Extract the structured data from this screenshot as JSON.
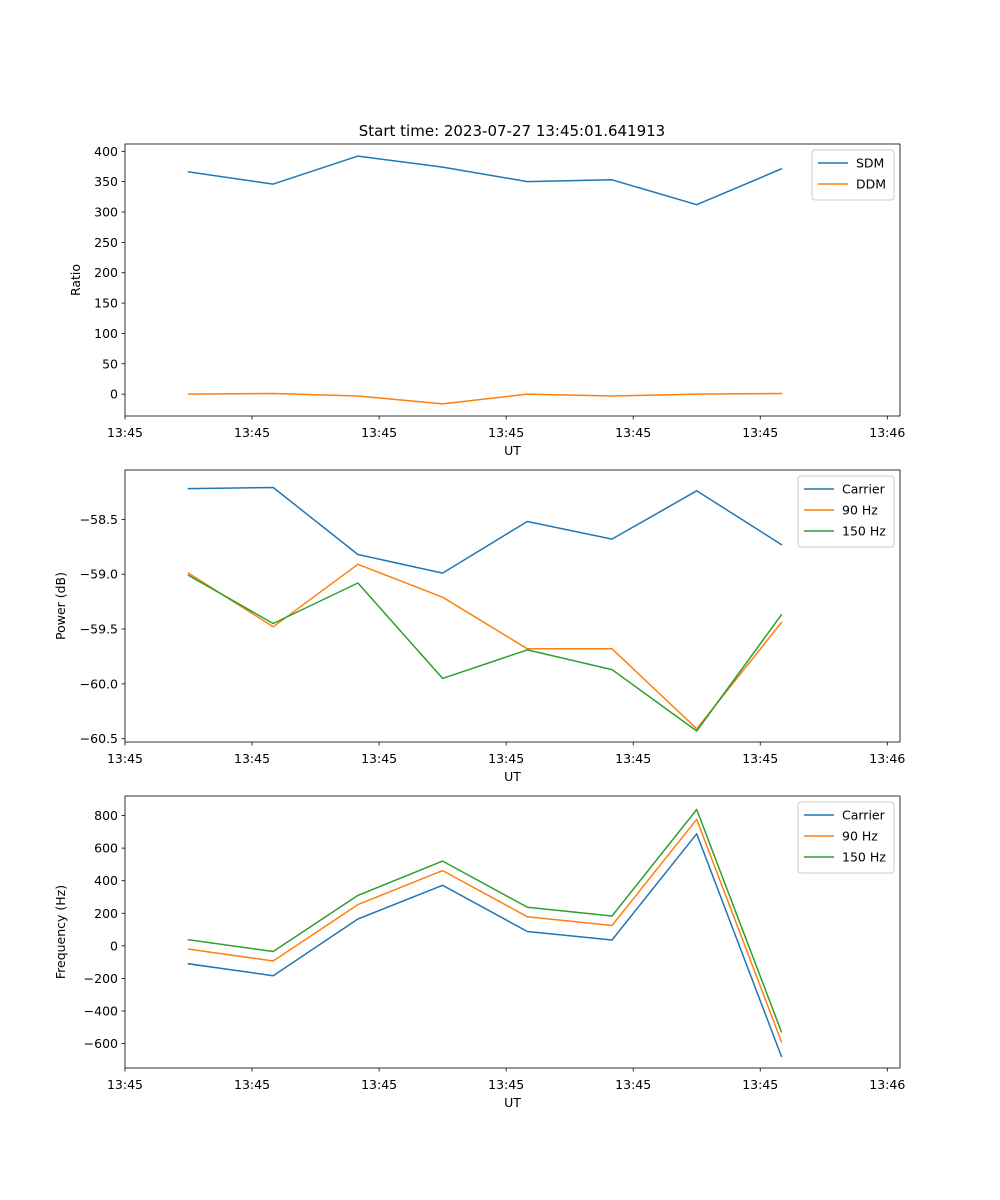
{
  "figure_title": "Start time: 2023-07-27 13:45:01.641913",
  "colors": {
    "blue": "#1f77b4",
    "orange": "#ff7f0e",
    "green": "#2ca02c"
  },
  "chart_data": [
    {
      "type": "line",
      "title": "Start time: 2023-07-27 13:45:01.641913",
      "xlabel": "UT",
      "ylabel": "Ratio",
      "x_tick_labels": [
        "13:45",
        "13:45",
        "13:45",
        "13:45",
        "13:45",
        "13:45",
        "13:46"
      ],
      "y_ticks": [
        0,
        50,
        100,
        150,
        200,
        250,
        300,
        350,
        400
      ],
      "ylim": [
        -36,
        412
      ],
      "x": [
        0,
        1,
        2,
        3,
        4,
        5,
        6,
        7
      ],
      "xlim": [
        -0.75,
        8.4
      ],
      "x_tick_positions": [
        -0.75,
        0.75,
        2.25,
        3.75,
        5.25,
        6.75,
        8.25
      ],
      "legend_position": "top-right",
      "series": [
        {
          "name": "SDM",
          "color": "#1f77b4",
          "values": [
            366,
            346,
            392,
            374,
            350,
            353,
            312,
            371
          ]
        },
        {
          "name": "DDM",
          "color": "#ff7f0e",
          "values": [
            0,
            1,
            -3,
            -16,
            0,
            -3,
            0,
            1
          ]
        }
      ]
    },
    {
      "type": "line",
      "xlabel": "UT",
      "ylabel": "Power (dB)",
      "x_tick_labels": [
        "13:45",
        "13:45",
        "13:45",
        "13:45",
        "13:45",
        "13:45",
        "13:46"
      ],
      "y_ticks": [
        -60.5,
        -60.0,
        -59.5,
        -59.0,
        -58.5
      ],
      "y_tick_labels": [
        "−60.5",
        "−60.0",
        "−59.5",
        "−59.0",
        "−58.5"
      ],
      "ylim": [
        -60.53,
        -58.05
      ],
      "x": [
        0,
        1,
        2,
        3,
        4,
        5,
        6,
        7
      ],
      "xlim": [
        -0.75,
        8.4
      ],
      "x_tick_positions": [
        -0.75,
        0.75,
        2.25,
        3.75,
        5.25,
        6.75,
        8.25
      ],
      "legend_position": "top-right",
      "series": [
        {
          "name": "Carrier",
          "color": "#1f77b4",
          "values": [
            -58.22,
            -58.21,
            -58.82,
            -58.99,
            -58.52,
            -58.68,
            -58.24,
            -58.73
          ]
        },
        {
          "name": "90 Hz",
          "color": "#ff7f0e",
          "values": [
            -58.99,
            -59.48,
            -58.91,
            -59.21,
            -59.68,
            -59.68,
            -60.41,
            -59.44
          ]
        },
        {
          "name": "150 Hz",
          "color": "#2ca02c",
          "values": [
            -59.01,
            -59.45,
            -59.08,
            -59.95,
            -59.69,
            -59.87,
            -60.43,
            -59.37
          ]
        }
      ]
    },
    {
      "type": "line",
      "xlabel": "UT",
      "ylabel": "Frequency (Hz)",
      "x_tick_labels": [
        "13:45",
        "13:45",
        "13:45",
        "13:45",
        "13:45",
        "13:45",
        "13:46"
      ],
      "y_ticks": [
        -600,
        -400,
        -200,
        0,
        200,
        400,
        600,
        800
      ],
      "y_tick_labels": [
        "−600",
        "−400",
        "−200",
        "0",
        "200",
        "400",
        "600",
        "800"
      ],
      "ylim": [
        -750,
        920
      ],
      "x": [
        0,
        1,
        2,
        3,
        4,
        5,
        6,
        7
      ],
      "xlim": [
        -0.75,
        8.4
      ],
      "x_tick_positions": [
        -0.75,
        0.75,
        2.25,
        3.75,
        5.25,
        6.75,
        8.25
      ],
      "legend_position": "top-right",
      "series": [
        {
          "name": "Carrier",
          "color": "#1f77b4",
          "values": [
            -110,
            -183,
            165,
            372,
            88,
            36,
            688,
            -678
          ]
        },
        {
          "name": "90 Hz",
          "color": "#ff7f0e",
          "values": [
            -20,
            -93,
            253,
            462,
            179,
            125,
            777,
            -588
          ]
        },
        {
          "name": "150 Hz",
          "color": "#2ca02c",
          "values": [
            38,
            -35,
            310,
            520,
            237,
            183,
            837,
            -528
          ]
        }
      ]
    }
  ]
}
